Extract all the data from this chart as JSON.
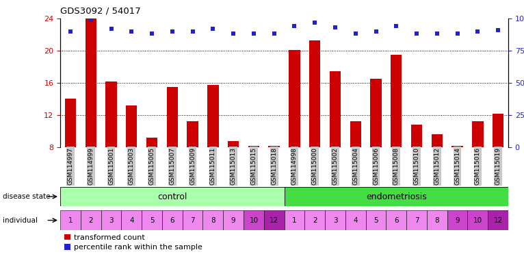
{
  "title": "GDS3092 / 54017",
  "samples": [
    "GSM114997",
    "GSM114999",
    "GSM115001",
    "GSM115003",
    "GSM115005",
    "GSM115007",
    "GSM115009",
    "GSM115011",
    "GSM115013",
    "GSM115015",
    "GSM115018",
    "GSM114998",
    "GSM115000",
    "GSM115002",
    "GSM115004",
    "GSM115006",
    "GSM115008",
    "GSM115010",
    "GSM115012",
    "GSM115014",
    "GSM115016",
    "GSM115019"
  ],
  "transformed_count": [
    14.0,
    24.0,
    16.2,
    13.2,
    9.2,
    15.5,
    11.2,
    15.7,
    8.8,
    8.2,
    8.2,
    20.1,
    21.3,
    17.4,
    11.2,
    16.5,
    19.5,
    10.8,
    9.6,
    8.2,
    11.2,
    12.2
  ],
  "percentile_rank": [
    90,
    99,
    92,
    90,
    88,
    90,
    90,
    92,
    88,
    88,
    88,
    94,
    97,
    93,
    88,
    90,
    94,
    88,
    88,
    88,
    90,
    91
  ],
  "individual": [
    1,
    2,
    3,
    4,
    5,
    6,
    7,
    8,
    9,
    10,
    12,
    1,
    2,
    3,
    4,
    5,
    6,
    7,
    8,
    9,
    10,
    12
  ],
  "ylim_left": [
    8,
    24
  ],
  "yticks_left": [
    8,
    12,
    16,
    20,
    24
  ],
  "ylim_right": [
    0,
    100
  ],
  "yticks_right": [
    0,
    25,
    50,
    75,
    100
  ],
  "bar_color": "#cc0000",
  "dot_color": "#2222cc",
  "control_color": "#aaffaa",
  "endo_color": "#44dd44",
  "individual_colors_control": [
    "#ee88ee",
    "#ee88ee",
    "#ee88ee",
    "#ee88ee",
    "#ee88ee",
    "#ee88ee",
    "#ee88ee",
    "#ee88ee",
    "#ee88ee",
    "#cc44cc",
    "#aa22aa"
  ],
  "individual_colors_endo": [
    "#ee88ee",
    "#ee88ee",
    "#ee88ee",
    "#ee88ee",
    "#ee88ee",
    "#ee88ee",
    "#ee88ee",
    "#ee88ee",
    "#cc44cc",
    "#cc44cc",
    "#aa22aa"
  ],
  "tick_label_color_left": "#cc0000",
  "tick_label_color_right": "#2222cc",
  "xlabel_bg": "#c8c8c8",
  "grid_yticks": [
    12,
    16,
    20
  ]
}
